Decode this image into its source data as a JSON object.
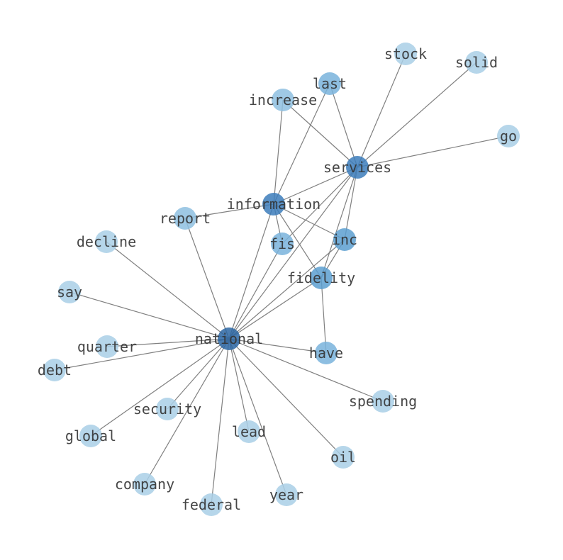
{
  "graph": {
    "type": "network",
    "edge_color": "#808080",
    "nodes": [
      {
        "id": "national",
        "color": "#2b66a3"
      },
      {
        "id": "services",
        "color": "#3c7cbb"
      },
      {
        "id": "information",
        "color": "#3c7cbb"
      },
      {
        "id": "inc",
        "color": "#5c9fd0"
      },
      {
        "id": "fidelity",
        "color": "#5c9fd0"
      },
      {
        "id": "fis",
        "color": "#79b3dc"
      },
      {
        "id": "have",
        "color": "#79b3dc"
      },
      {
        "id": "last",
        "color": "#79b3dc"
      },
      {
        "id": "increase",
        "color": "#8ec0e0"
      },
      {
        "id": "report",
        "color": "#8ec0e0"
      },
      {
        "id": "stock",
        "color": "#a9cfe6"
      },
      {
        "id": "solid",
        "color": "#a9cfe6"
      },
      {
        "id": "go",
        "color": "#a9cfe6"
      },
      {
        "id": "decline",
        "color": "#a9cfe6"
      },
      {
        "id": "say",
        "color": "#a9cfe6"
      },
      {
        "id": "quarter",
        "color": "#a9cfe6"
      },
      {
        "id": "debt",
        "color": "#a9cfe6"
      },
      {
        "id": "security",
        "color": "#a9cfe6"
      },
      {
        "id": "global",
        "color": "#a9cfe6"
      },
      {
        "id": "lead",
        "color": "#a9cfe6"
      },
      {
        "id": "spending",
        "color": "#a9cfe6"
      },
      {
        "id": "oil",
        "color": "#a9cfe6"
      },
      {
        "id": "company",
        "color": "#a9cfe6"
      },
      {
        "id": "federal",
        "color": "#a9cfe6"
      },
      {
        "id": "year",
        "color": "#a9cfe6"
      }
    ],
    "edges": [
      [
        "information",
        "services"
      ],
      [
        "information",
        "report"
      ],
      [
        "information",
        "increase"
      ],
      [
        "information",
        "last"
      ],
      [
        "information",
        "fis"
      ],
      [
        "information",
        "inc"
      ],
      [
        "information",
        "fidelity"
      ],
      [
        "information",
        "national"
      ],
      [
        "services",
        "fis"
      ],
      [
        "services",
        "national"
      ],
      [
        "services",
        "inc"
      ],
      [
        "services",
        "fidelity"
      ],
      [
        "services",
        "increase"
      ],
      [
        "services",
        "last"
      ],
      [
        "services",
        "stock"
      ],
      [
        "services",
        "solid"
      ],
      [
        "services",
        "go"
      ],
      [
        "inc",
        "national"
      ],
      [
        "inc",
        "fidelity"
      ],
      [
        "fidelity",
        "national"
      ],
      [
        "fidelity",
        "have"
      ],
      [
        "national",
        "report"
      ],
      [
        "national",
        "decline"
      ],
      [
        "national",
        "say"
      ],
      [
        "national",
        "quarter"
      ],
      [
        "national",
        "debt"
      ],
      [
        "national",
        "global"
      ],
      [
        "national",
        "security"
      ],
      [
        "national",
        "company"
      ],
      [
        "national",
        "federal"
      ],
      [
        "national",
        "lead"
      ],
      [
        "national",
        "year"
      ],
      [
        "national",
        "oil"
      ],
      [
        "national",
        "spending"
      ],
      [
        "national",
        "have"
      ],
      [
        "national",
        "fis"
      ]
    ]
  }
}
